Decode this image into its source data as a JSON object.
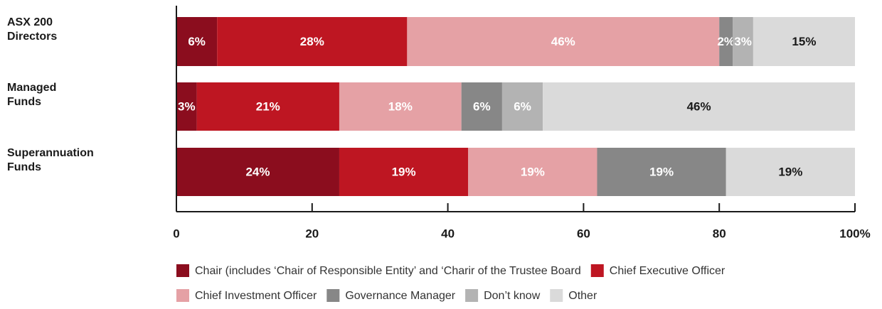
{
  "chart_data": {
    "type": "stacked_bar_horizontal",
    "categories": [
      "ASX 200\nDirectors",
      "Managed\nFunds",
      "Superannuation\nFunds"
    ],
    "series": [
      {
        "name": "Chair (includes ‘Chair of Responsible Entity’ and ‘Charir of the Trustee Board",
        "color": "#8b0d1e",
        "label_color": "#ffffff",
        "values": [
          6,
          3,
          24
        ],
        "value_labels": [
          "6%",
          "3%",
          "24%"
        ]
      },
      {
        "name": "Chief Executive Officer",
        "color": "#be1622",
        "label_color": "#ffffff",
        "values": [
          28,
          21,
          19
        ],
        "value_labels": [
          "28%",
          "21%",
          "19%"
        ]
      },
      {
        "name": "Chief Investment Officer",
        "color": "#e5a1a5",
        "label_color": "#ffffff",
        "values": [
          46,
          18,
          19
        ],
        "value_labels": [
          "46%",
          "18%",
          "19%"
        ]
      },
      {
        "name": "Governance Manager",
        "color": "#878787",
        "label_color": "#ffffff",
        "values": [
          2,
          6,
          19
        ],
        "value_labels": [
          "2%",
          "6%",
          "19%"
        ]
      },
      {
        "name": "Don’t know",
        "color": "#b3b3b3",
        "label_color": "#ffffff",
        "values": [
          3,
          6,
          null
        ],
        "value_labels": [
          "3%",
          "6%",
          null
        ]
      },
      {
        "name": "Other",
        "color": "#dadada",
        "label_color": "#1a1a1a",
        "values": [
          15,
          46,
          19
        ],
        "value_labels": [
          "15%",
          "46%",
          "19%"
        ]
      }
    ],
    "xlim": [
      0,
      100
    ],
    "xticks": [
      0,
      20,
      40,
      60,
      80,
      {
        "value": 100,
        "label": "100%"
      }
    ],
    "grid": false
  }
}
